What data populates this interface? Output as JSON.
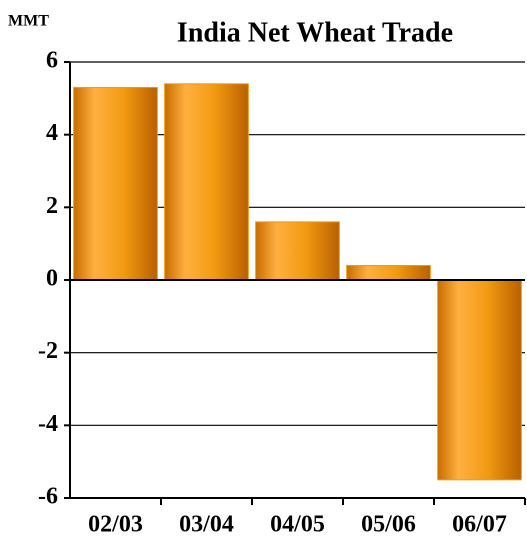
{
  "chart_data": {
    "type": "bar",
    "title": "India Net Wheat Trade",
    "y_label": "MMT",
    "categories": [
      "02/03",
      "03/04",
      "04/05",
      "05/06",
      "06/07"
    ],
    "values": [
      5.3,
      5.4,
      1.6,
      0.4,
      -5.5
    ],
    "color": "#f29a10",
    "ylim": [
      -6,
      6
    ],
    "yticks": [
      -6,
      -4,
      -2,
      0,
      2,
      4,
      6
    ],
    "grid": true
  }
}
